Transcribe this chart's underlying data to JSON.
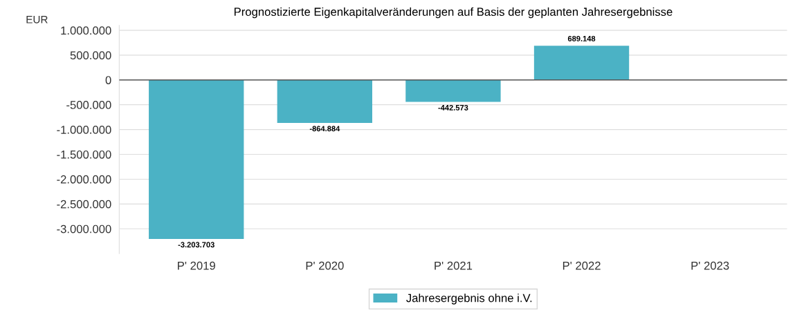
{
  "chart_data": {
    "type": "bar",
    "title": "Prognostizierte Eigenkapitalveränderungen auf Basis der geplanten Jahresergebnisse",
    "ylabel": "EUR",
    "categories": [
      "P' 2019",
      "P' 2020",
      "P' 2021",
      "P' 2022",
      "P' 2023"
    ],
    "series": [
      {
        "name": "Jahresergebnis ohne i.V.",
        "color": "#4bb2c5",
        "values": [
          -3203703,
          -864884,
          -442573,
          689148,
          null
        ],
        "value_labels": [
          "-3.203.703",
          "-864.884",
          "-442.573",
          "689.148",
          null
        ]
      }
    ],
    "ylim": [
      -3500000,
      1100000
    ],
    "yticks": [
      {
        "value": 1000000,
        "label": "1.000.000"
      },
      {
        "value": 500000,
        "label": "500.000"
      },
      0,
      {
        "value": -500000,
        "label": "-500.000"
      },
      {
        "value": -1000000,
        "label": "-1.000.000"
      },
      {
        "value": -1500000,
        "label": "-1.500.000"
      },
      {
        "value": -2000000,
        "label": "-2.000.000"
      },
      {
        "value": -2500000,
        "label": "-2.500.000"
      },
      {
        "value": -3000000,
        "label": "-3.000.000"
      }
    ],
    "ref_lines": [
      {
        "axis": "y",
        "value": 0,
        "label": null,
        "color": "#555555"
      }
    ],
    "grid": "y",
    "legend": "bottom"
  }
}
